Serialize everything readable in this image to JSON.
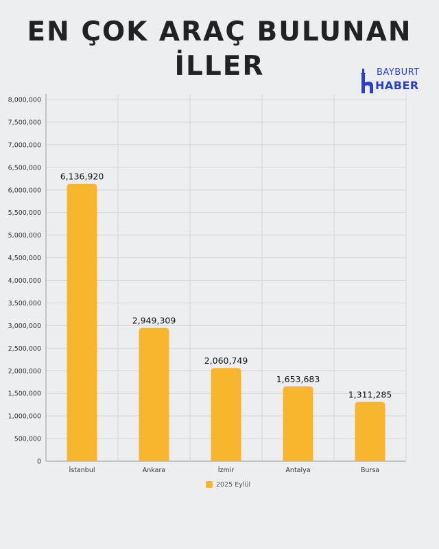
{
  "title_line1": "EN ÇOK ARAÇ BULUNAN",
  "title_line2": "İLLER",
  "logo": {
    "top_word": "BAYBURT",
    "bottom_word": "HABER",
    "icon": "minaret-icon",
    "color": "#2a3fd1"
  },
  "chart_data": {
    "type": "bar",
    "categories": [
      "İstanbul",
      "Ankara",
      "İzmir",
      "Antalya",
      "Bursa"
    ],
    "series": [
      {
        "name": "2025 Eylül",
        "values": [
          6136920,
          2949309,
          2060749,
          1653683,
          1311285
        ],
        "color": "#f8b52e"
      }
    ],
    "data_labels": [
      "6,136,920",
      "2,949,309",
      "2,060,749",
      "1,653,683",
      "1,311,285"
    ],
    "ylim": [
      0,
      8000000
    ],
    "yticks": [
      0,
      500000,
      1000000,
      1500000,
      2000000,
      2500000,
      3000000,
      3500000,
      4000000,
      4500000,
      5000000,
      5500000,
      6000000,
      6500000,
      7000000,
      7500000,
      8000000
    ],
    "ytick_labels": [
      "0",
      "500,000",
      "1,000,000",
      "1,500,000",
      "2,000,000",
      "2,500,000",
      "3,000,000",
      "3,500,000",
      "4,000,000",
      "4,500,000",
      "5,000,000",
      "5,500,000",
      "6,000,000",
      "6,500,000",
      "7,000,000",
      "7,500,000",
      "8,000,000"
    ],
    "grid": true,
    "legend_position": "bottom-center",
    "xlabel": "",
    "ylabel": ""
  }
}
